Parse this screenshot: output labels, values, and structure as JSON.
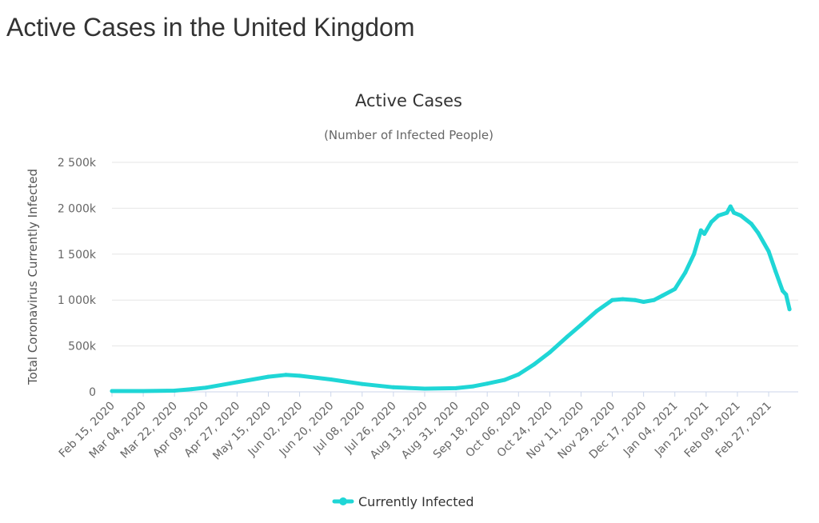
{
  "page": {
    "heading": "Active Cases in the United Kingdom"
  },
  "colors": {
    "series": "#1fd6d6",
    "grid": "#e6e6e6",
    "axis": "#ccd6eb"
  },
  "chart_data": {
    "type": "line",
    "title": "Active Cases",
    "subtitle": "(Number of Infected People)",
    "xlabel": "",
    "ylabel": "Total Coronavirus Currently Infected",
    "ylim": [
      0,
      2500000
    ],
    "yticks": [
      {
        "value": 0,
        "label": "0"
      },
      {
        "value": 500000,
        "label": "500k"
      },
      {
        "value": 1000000,
        "label": "1 000k"
      },
      {
        "value": 1500000,
        "label": "1 500k"
      },
      {
        "value": 2000000,
        "label": "2 000k"
      },
      {
        "value": 2500000,
        "label": "2 500k"
      }
    ],
    "xlim": [
      "2020-02-15",
      "2021-03-16"
    ],
    "xticks": [
      {
        "date": "2020-02-15",
        "label": "Feb 15, 2020"
      },
      {
        "date": "2020-03-04",
        "label": "Mar 04, 2020"
      },
      {
        "date": "2020-03-22",
        "label": "Mar 22, 2020"
      },
      {
        "date": "2020-04-09",
        "label": "Apr 09, 2020"
      },
      {
        "date": "2020-04-27",
        "label": "Apr 27, 2020"
      },
      {
        "date": "2020-05-15",
        "label": "May 15, 2020"
      },
      {
        "date": "2020-06-02",
        "label": "Jun 02, 2020"
      },
      {
        "date": "2020-06-20",
        "label": "Jun 20, 2020"
      },
      {
        "date": "2020-07-08",
        "label": "Jul 08, 2020"
      },
      {
        "date": "2020-07-26",
        "label": "Jul 26, 2020"
      },
      {
        "date": "2020-08-13",
        "label": "Aug 13, 2020"
      },
      {
        "date": "2020-08-31",
        "label": "Aug 31, 2020"
      },
      {
        "date": "2020-09-18",
        "label": "Sep 18, 2020"
      },
      {
        "date": "2020-10-06",
        "label": "Oct 06, 2020"
      },
      {
        "date": "2020-10-24",
        "label": "Oct 24, 2020"
      },
      {
        "date": "2020-11-11",
        "label": "Nov 11, 2020"
      },
      {
        "date": "2020-11-29",
        "label": "Nov 29, 2020"
      },
      {
        "date": "2020-12-17",
        "label": "Dec 17, 2020"
      },
      {
        "date": "2021-01-04",
        "label": "Jan 04, 2021"
      },
      {
        "date": "2021-01-22",
        "label": "Jan 22, 2021"
      },
      {
        "date": "2021-02-09",
        "label": "Feb 09, 2021"
      },
      {
        "date": "2021-02-27",
        "label": "Feb 27, 2021"
      }
    ],
    "grid": true,
    "legend_position": "bottom-center",
    "series": [
      {
        "name": "Currently Infected",
        "color": "#1fd6d6",
        "points": [
          [
            "2020-02-15",
            9000
          ],
          [
            "2020-03-04",
            9000
          ],
          [
            "2020-03-22",
            13000
          ],
          [
            "2020-04-01",
            30000
          ],
          [
            "2020-04-09",
            45000
          ],
          [
            "2020-04-27",
            105000
          ],
          [
            "2020-05-15",
            165000
          ],
          [
            "2020-05-25",
            185000
          ],
          [
            "2020-06-02",
            175000
          ],
          [
            "2020-06-20",
            135000
          ],
          [
            "2020-07-08",
            85000
          ],
          [
            "2020-07-26",
            50000
          ],
          [
            "2020-08-13",
            35000
          ],
          [
            "2020-08-31",
            40000
          ],
          [
            "2020-09-10",
            60000
          ],
          [
            "2020-09-18",
            90000
          ],
          [
            "2020-09-28",
            130000
          ],
          [
            "2020-10-06",
            190000
          ],
          [
            "2020-10-15",
            300000
          ],
          [
            "2020-10-24",
            430000
          ],
          [
            "2020-11-03",
            600000
          ],
          [
            "2020-11-11",
            730000
          ],
          [
            "2020-11-20",
            880000
          ],
          [
            "2020-11-29",
            1000000
          ],
          [
            "2020-12-05",
            1010000
          ],
          [
            "2020-12-12",
            1000000
          ],
          [
            "2020-12-17",
            980000
          ],
          [
            "2020-12-23",
            1000000
          ],
          [
            "2020-12-28",
            1050000
          ],
          [
            "2021-01-04",
            1120000
          ],
          [
            "2021-01-10",
            1300000
          ],
          [
            "2021-01-15",
            1500000
          ],
          [
            "2021-01-19",
            1760000
          ],
          [
            "2021-01-21",
            1720000
          ],
          [
            "2021-01-25",
            1850000
          ],
          [
            "2021-01-29",
            1920000
          ],
          [
            "2021-02-03",
            1950000
          ],
          [
            "2021-02-05",
            2020000
          ],
          [
            "2021-02-07",
            1950000
          ],
          [
            "2021-02-11",
            1920000
          ],
          [
            "2021-02-17",
            1830000
          ],
          [
            "2021-02-21",
            1730000
          ],
          [
            "2021-02-27",
            1530000
          ],
          [
            "2021-03-03",
            1310000
          ],
          [
            "2021-03-07",
            1100000
          ],
          [
            "2021-03-09",
            1060000
          ],
          [
            "2021-03-11",
            900000
          ]
        ]
      }
    ]
  }
}
